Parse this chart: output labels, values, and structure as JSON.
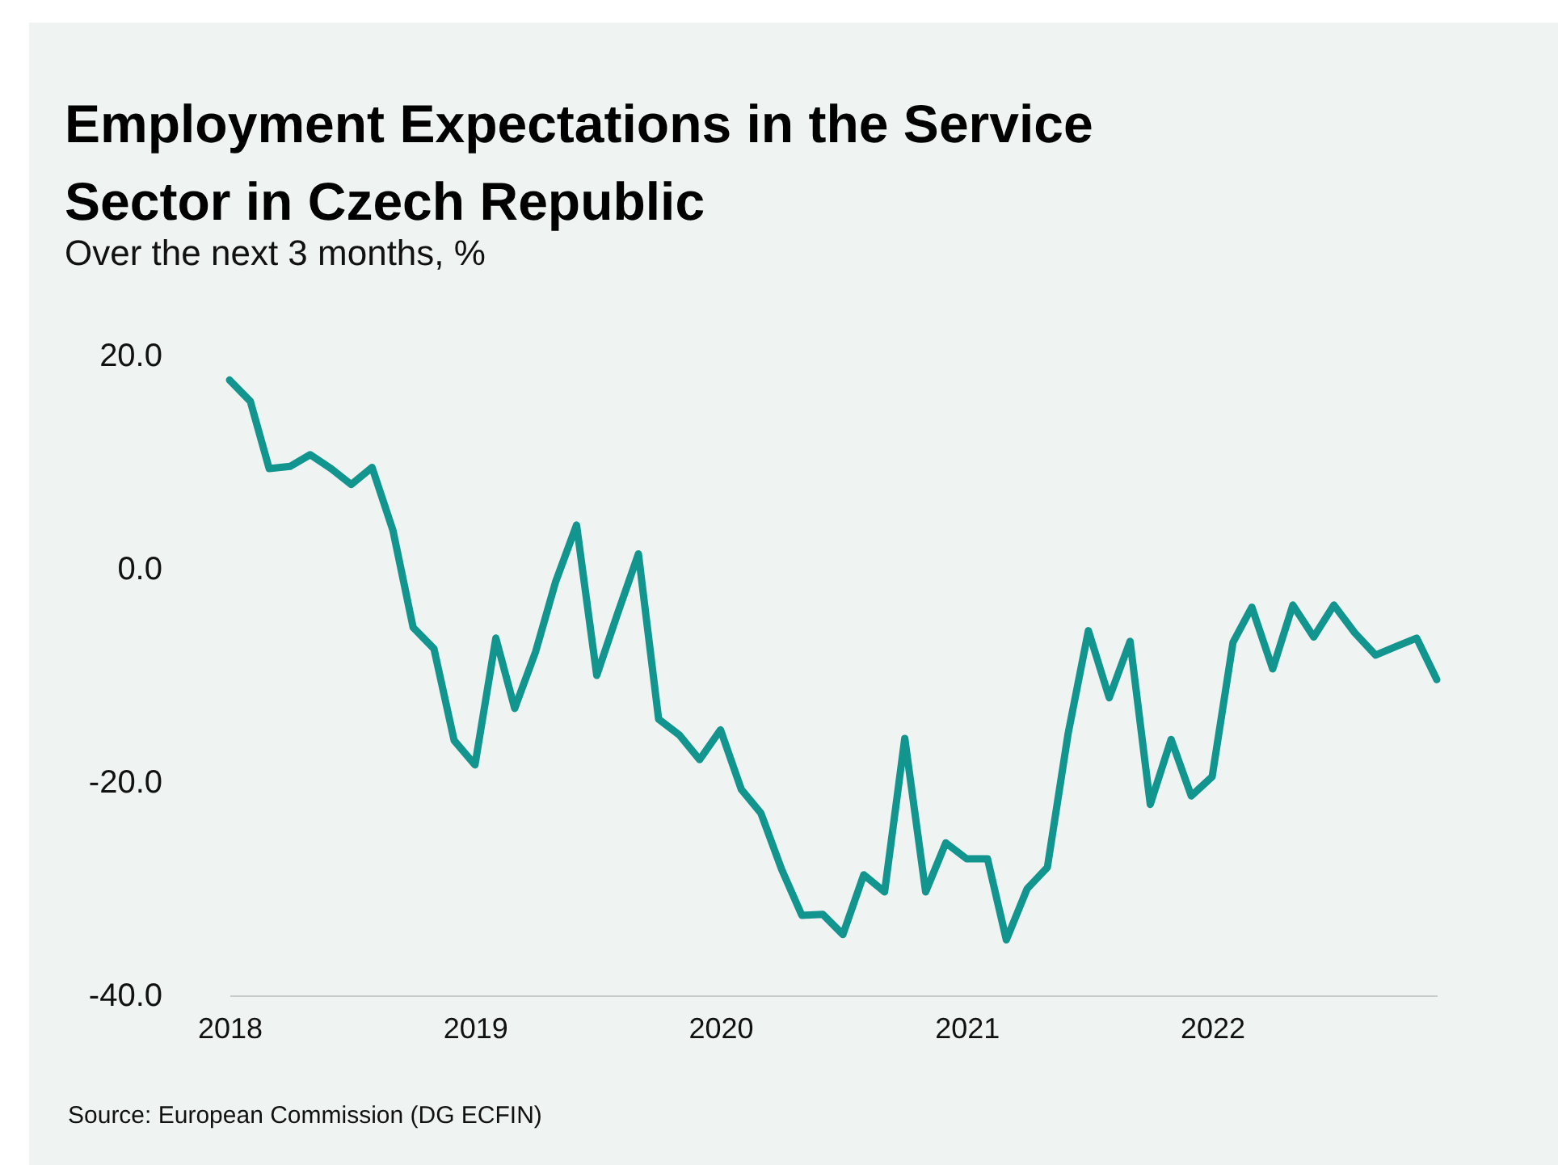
{
  "chart_data": {
    "type": "line",
    "title": "Employment Expectations in the Service\nSector in Czech Republic",
    "subtitle": "Over the next 3 months, %",
    "annotations": [
      "Source: European Commission (DG ECFIN)"
    ],
    "x": [
      "2018-01",
      "2018-02",
      "2018-03",
      "2018-04",
      "2018-05",
      "2018-06",
      "2018-07",
      "2018-08",
      "2018-09",
      "2018-10",
      "2018-11",
      "2018-12",
      "2019-01",
      "2019-02",
      "2019-03",
      "2019-04",
      "2019-05",
      "2019-06",
      "2019-07",
      "2019-08",
      "2019-09",
      "2019-10",
      "2019-11",
      "2019-12",
      "2020-01",
      "2020-02",
      "2020-03",
      "2020-04",
      "2020-05",
      "2020-06",
      "2020-07",
      "2020-08",
      "2020-09",
      "2020-10",
      "2020-11",
      "2020-12",
      "2021-01",
      "2021-02",
      "2021-03",
      "2021-04",
      "2021-05",
      "2021-06",
      "2021-07",
      "2021-08",
      "2021-09",
      "2021-10",
      "2021-11",
      "2021-12",
      "2022-01",
      "2022-02",
      "2022-03",
      "2022-04",
      "2022-05",
      "2022-06",
      "2022-07",
      "2022-08",
      "2022-09",
      "2022-10",
      "2022-11",
      "2022-12"
    ],
    "series": [
      {
        "color": "#12958e",
        "values": [
          17.7,
          15.7,
          9.4,
          9.6,
          10.7,
          9.4,
          7.9,
          9.5,
          3.6,
          -5.5,
          -7.5,
          -16.1,
          -18.4,
          -6.5,
          -13.1,
          -7.8,
          -1.2,
          4.1,
          -10.0,
          -4.2,
          1.4,
          -14.1,
          -15.6,
          -17.9,
          -15.1,
          -20.7,
          -22.9,
          -28.2,
          -32.5,
          -32.4,
          -34.3,
          -28.7,
          -30.3,
          -15.9,
          -30.3,
          -25.7,
          -27.2,
          -27.2,
          -34.8,
          -30.0,
          -28.0,
          -15.4,
          -5.8,
          -12.1,
          -6.8,
          -22.1,
          -16.0,
          -21.3,
          -19.5,
          -6.9,
          -3.6,
          -9.4,
          -3.4,
          -6.4,
          -3.4,
          -6.0,
          -8.1,
          -7.3,
          -6.5,
          -10.4
        ]
      }
    ],
    "xlim": [
      "2018-01",
      "2022-12"
    ],
    "xticks": [
      "2018",
      "2019",
      "2020",
      "2021",
      "2022"
    ],
    "ylim": [
      -40,
      20
    ],
    "yticks": [
      {
        "value": 20,
        "label": "20.0"
      },
      {
        "value": 0,
        "label": "0.0"
      },
      {
        "value": -20,
        "label": "-20.0"
      },
      {
        "value": -40,
        "label": "-40.0"
      }
    ],
    "grid": false,
    "legend": false,
    "marker": "none",
    "line_style": "solid"
  }
}
